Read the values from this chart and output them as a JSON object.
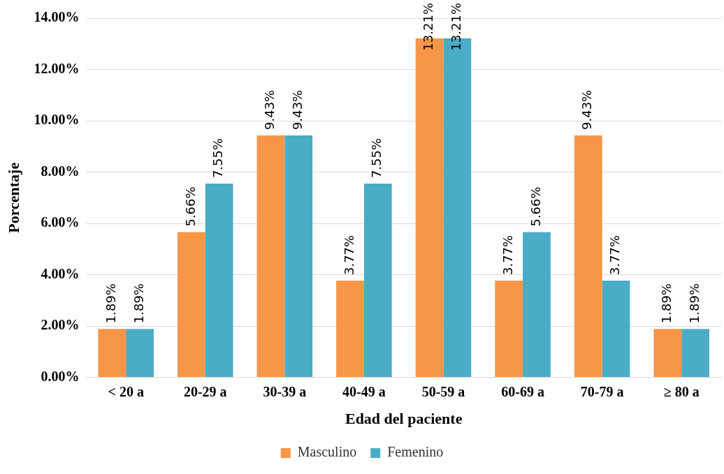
{
  "chart_data": {
    "type": "bar",
    "xlabel": "Edad del paciente",
    "ylabel": "Porcentaje",
    "categories": [
      "< 20 a",
      "20-29 a",
      "30-39 a",
      "40-49 a",
      "50-59 a",
      "60-69 a",
      "70-79 a",
      "≥ 80 a"
    ],
    "series": [
      {
        "name": "Masculino",
        "color": "#f79646",
        "values": [
          1.89,
          5.66,
          9.43,
          3.77,
          13.21,
          3.77,
          9.43,
          1.89
        ],
        "value_labels": [
          "1.89%",
          "5.66%",
          "9.43%",
          "3.77%",
          "13.21%",
          "3.77%",
          "9.43%",
          "1.89%"
        ]
      },
      {
        "name": "Femenino",
        "color": "#4bacc6",
        "values": [
          1.89,
          7.55,
          9.43,
          7.55,
          13.21,
          5.66,
          3.77,
          1.89
        ],
        "value_labels": [
          "1.89%",
          "7.55%",
          "9.43%",
          "7.55%",
          "13.21%",
          "5.66%",
          "3.77%",
          "1.89%"
        ]
      }
    ],
    "ylim": [
      0,
      14
    ],
    "yticks": [
      {
        "value": 0,
        "label": "0.00%"
      },
      {
        "value": 2,
        "label": "2.00%"
      },
      {
        "value": 4,
        "label": "4.00%"
      },
      {
        "value": 6,
        "label": "6.00%"
      },
      {
        "value": 8,
        "label": "8.00%"
      },
      {
        "value": 10,
        "label": "10.00%"
      },
      {
        "value": 12,
        "label": "12.00%"
      },
      {
        "value": 14,
        "label": "14.00%"
      }
    ],
    "grid": "y",
    "legend": "bottom"
  }
}
